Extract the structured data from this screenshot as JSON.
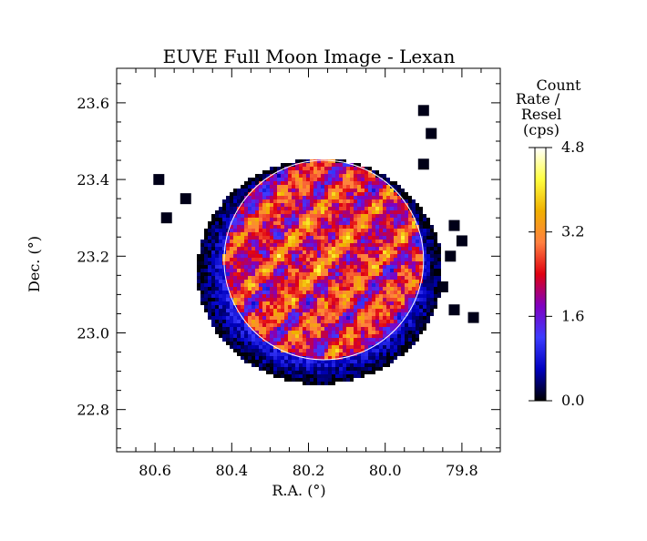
{
  "chart_data": {
    "type": "heatmap",
    "title": "EUVE Full Moon Image - Lexan",
    "xlabel": "R.A. (°)",
    "ylabel": "Dec. (°)",
    "xlim": [
      80.7,
      79.7
    ],
    "ylim": [
      22.69,
      23.69
    ],
    "x_ticks": [
      "80.6",
      "80.4",
      "80.2",
      "80.0",
      "79.8"
    ],
    "x_tick_values": [
      80.6,
      80.4,
      80.2,
      80.0,
      79.8
    ],
    "y_ticks": [
      "22.8",
      "23.0",
      "23.2",
      "23.4",
      "23.6"
    ],
    "y_tick_values": [
      22.8,
      23.0,
      23.2,
      23.4,
      23.6
    ],
    "colorbar": {
      "label_lines": [
        "Count",
        "Rate /",
        "Resel",
        "(cps)"
      ],
      "ticks": [
        "0.0",
        "1.6",
        "3.2",
        "4.8"
      ],
      "tick_values": [
        0.0,
        1.6,
        3.2,
        4.8
      ],
      "min": 0.0,
      "max": 4.8
    },
    "lunar_limb_circle": {
      "center_ra": 80.16,
      "center_dec": 23.19,
      "radius_deg": 0.26
    },
    "emission_region": {
      "center_ra": 80.17,
      "center_dec": 23.16,
      "radius_deg": 0.32,
      "peak_rate": 4.8
    },
    "isolated_pixels": [
      {
        "ra": 80.59,
        "dec": 23.4
      },
      {
        "ra": 80.57,
        "dec": 23.3
      },
      {
        "ra": 80.52,
        "dec": 23.35
      },
      {
        "ra": 79.9,
        "dec": 23.58
      },
      {
        "ra": 79.88,
        "dec": 23.52
      },
      {
        "ra": 79.9,
        "dec": 23.44
      },
      {
        "ra": 79.82,
        "dec": 23.28
      },
      {
        "ra": 79.8,
        "dec": 23.24
      },
      {
        "ra": 79.83,
        "dec": 23.2
      },
      {
        "ra": 79.85,
        "dec": 23.12
      },
      {
        "ra": 79.82,
        "dec": 23.06
      },
      {
        "ra": 79.77,
        "dec": 23.04
      }
    ]
  },
  "colors": {
    "colormap": [
      "#000000",
      "#0000c0",
      "#3c3cff",
      "#8000c0",
      "#e00010",
      "#ff8040",
      "#f0b000",
      "#ffff40",
      "#ffffff"
    ],
    "limb_circle": "#ffffff",
    "axes": "#000000"
  }
}
